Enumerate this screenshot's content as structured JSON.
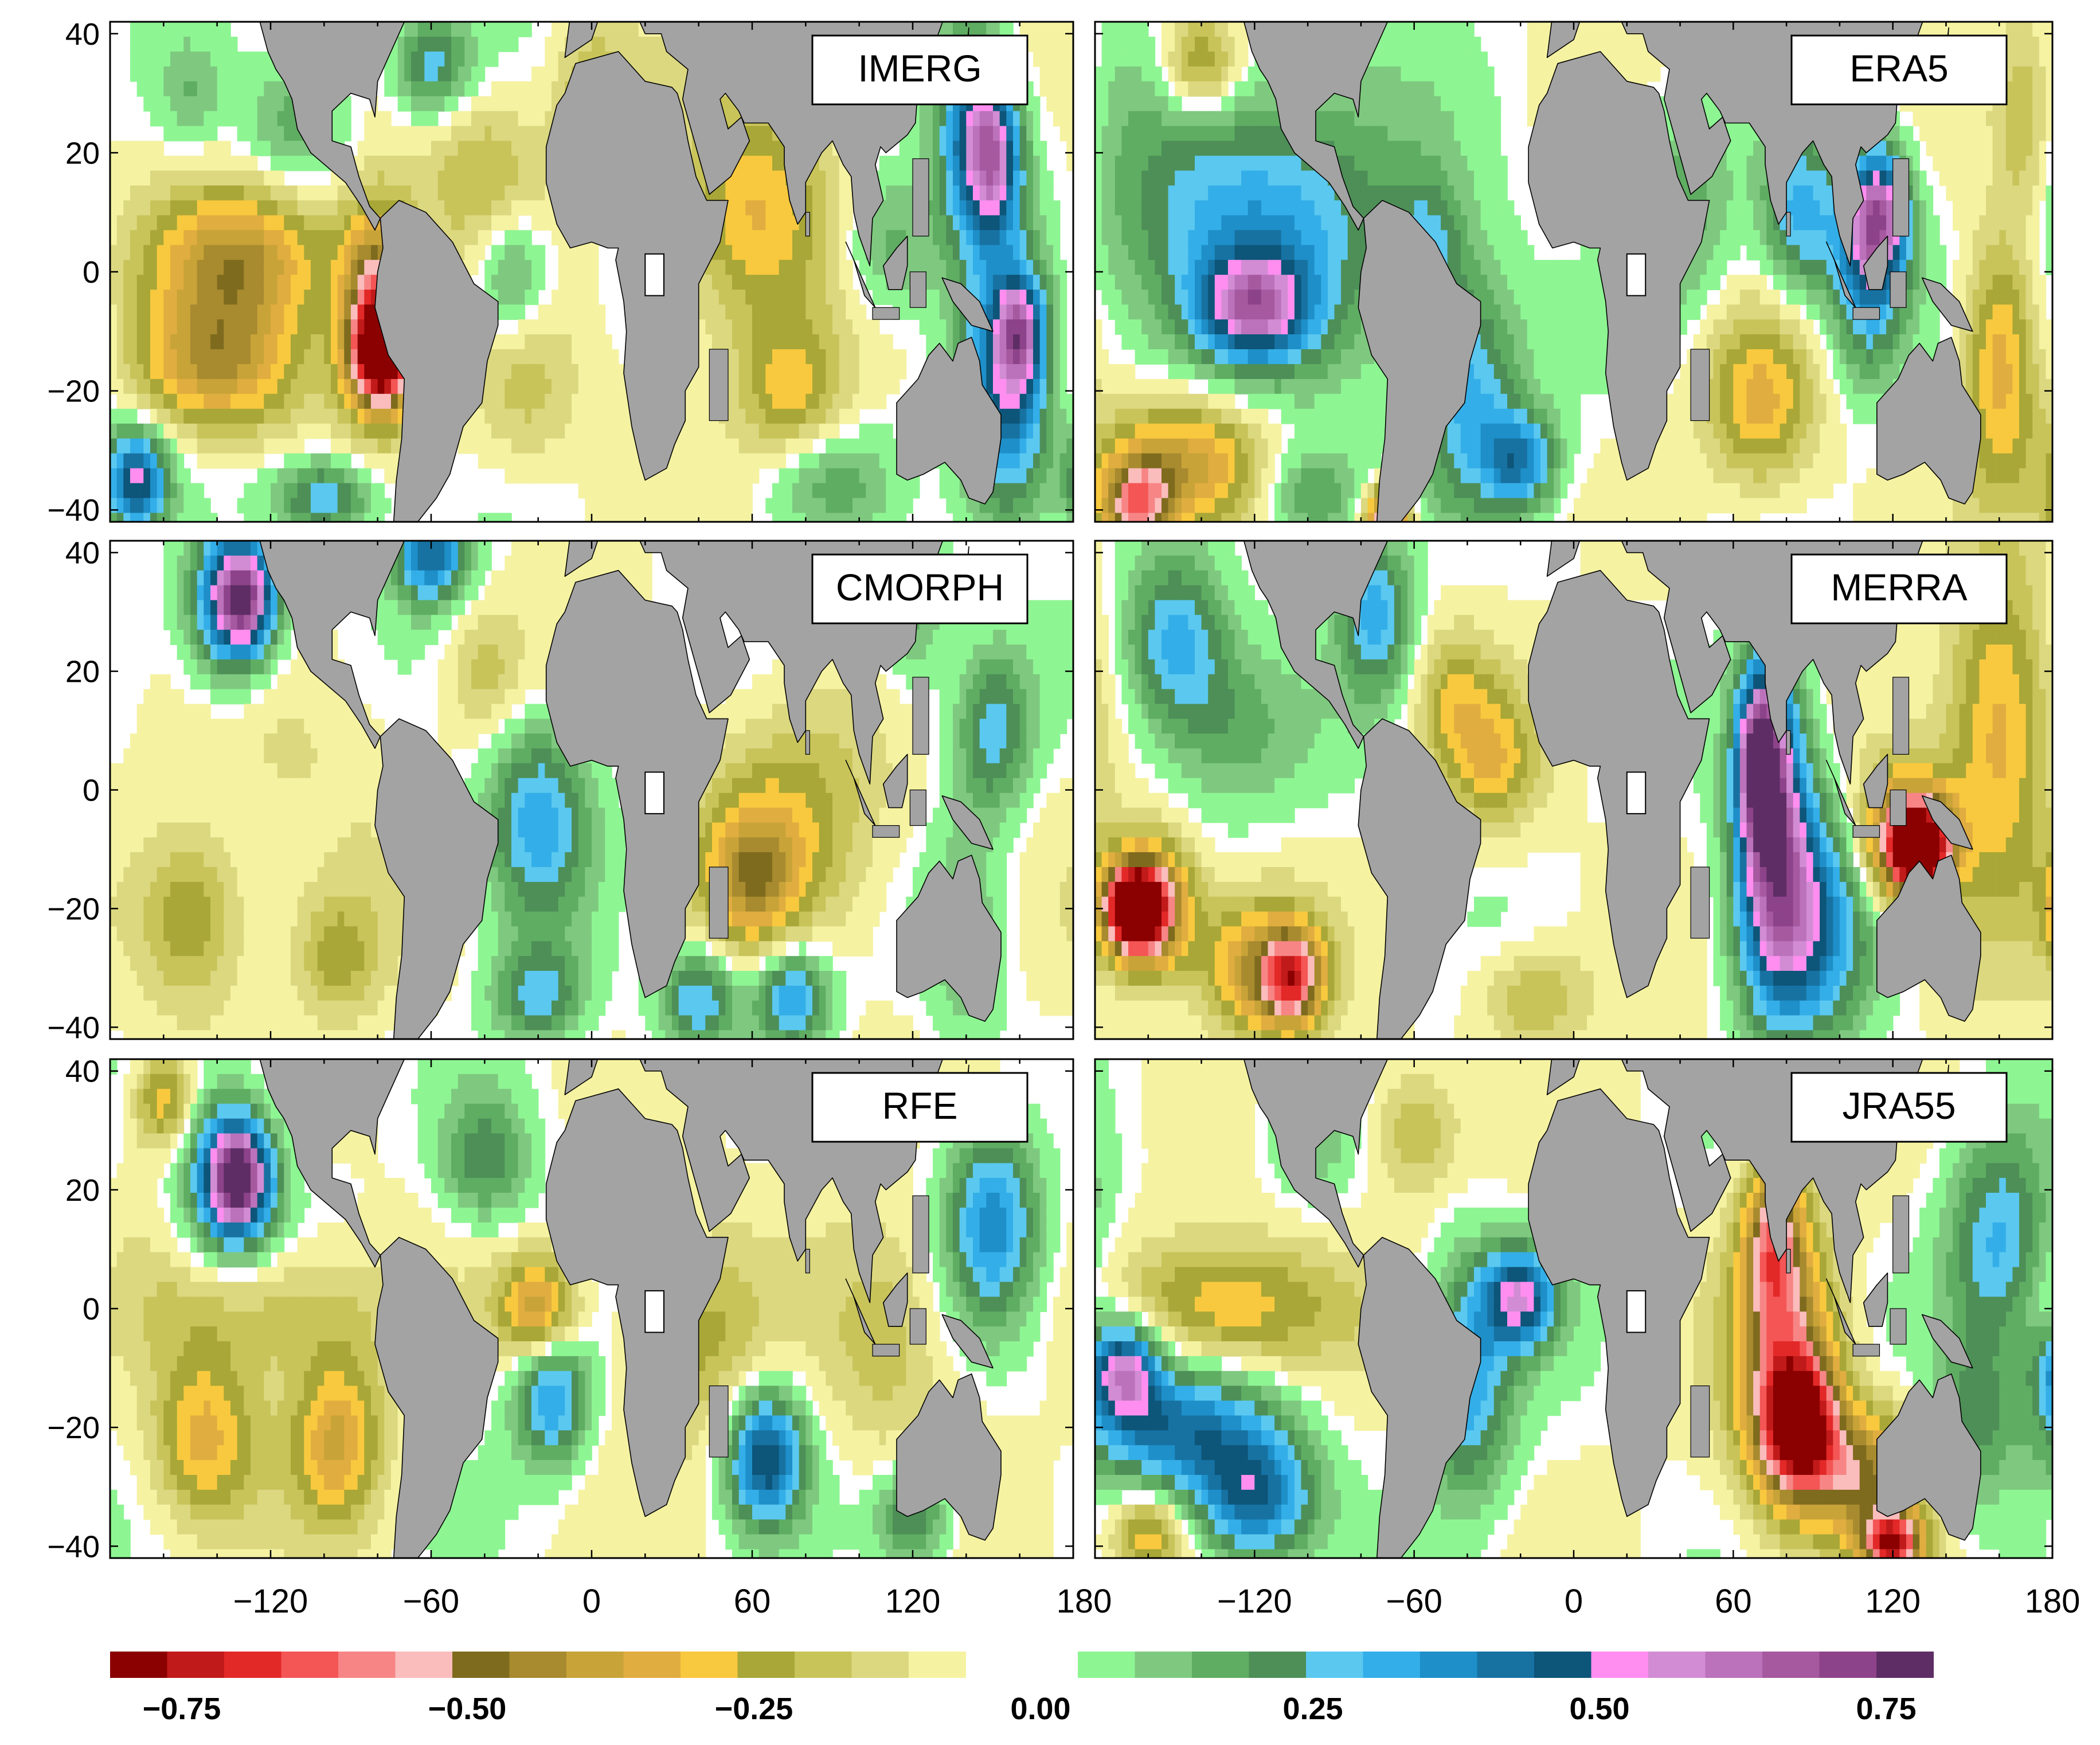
{
  "chart_data": {
    "type": "heatmap",
    "title": "",
    "x_ticks": [
      -120,
      -60,
      0,
      60,
      120,
      180
    ],
    "y_ticks": [
      40,
      20,
      0,
      -20,
      -40
    ],
    "xlim": [
      -180,
      180
    ],
    "ylim": [
      -42,
      42
    ],
    "land_color": "#a3a3a3",
    "panels": [
      {
        "name": "IMERG",
        "column": "left",
        "row": 1,
        "blobs": [
          [
            -130,
            2,
            24,
            9,
            -0.42
          ],
          [
            -80,
            -6,
            10,
            12,
            -0.6
          ],
          [
            -78,
            -14,
            8,
            6,
            -0.72
          ],
          [
            -140,
            -16,
            22,
            8,
            -0.38
          ],
          [
            -150,
            30,
            8,
            6,
            0.12
          ],
          [
            -110,
            25,
            14,
            8,
            0.2
          ],
          [
            -40,
            16,
            16,
            10,
            -0.18
          ],
          [
            -25,
            -20,
            14,
            10,
            -0.15
          ],
          [
            -30,
            0,
            10,
            8,
            0.25
          ],
          [
            60,
            10,
            20,
            14,
            -0.3
          ],
          [
            75,
            -20,
            14,
            8,
            -0.25
          ],
          [
            90,
            -35,
            16,
            6,
            0.15
          ],
          [
            140,
            25,
            10,
            14,
            0.35
          ],
          [
            150,
            20,
            8,
            10,
            0.55
          ],
          [
            155,
            -20,
            12,
            16,
            0.55
          ],
          [
            160,
            -10,
            6,
            6,
            0.4
          ],
          [
            -100,
            -38,
            14,
            5,
            0.35
          ],
          [
            -170,
            -35,
            8,
            6,
            0.55
          ],
          [
            110,
            5,
            12,
            8,
            0.2
          ],
          [
            -60,
            35,
            10,
            6,
            0.3
          ],
          [
            0,
            30,
            10,
            8,
            -0.2
          ]
        ]
      },
      {
        "name": "ERA5",
        "column": "right",
        "row": 1,
        "blobs": [
          [
            -120,
            8,
            40,
            18,
            0.38
          ],
          [
            -120,
            -6,
            14,
            6,
            0.48
          ],
          [
            -145,
            -32,
            22,
            8,
            -0.4
          ],
          [
            -165,
            -40,
            10,
            6,
            -0.55
          ],
          [
            -40,
            -20,
            14,
            14,
            0.35
          ],
          [
            -20,
            -32,
            10,
            6,
            0.4
          ],
          [
            40,
            10,
            14,
            12,
            0.2
          ],
          [
            70,
            -22,
            14,
            10,
            -0.3
          ],
          [
            85,
            10,
            10,
            10,
            0.35
          ],
          [
            110,
            0,
            10,
            12,
            0.4
          ],
          [
            115,
            10,
            8,
            8,
            0.55
          ],
          [
            160,
            -15,
            10,
            16,
            -0.35
          ],
          [
            -55,
            5,
            10,
            8,
            0.2
          ],
          [
            -140,
            35,
            10,
            6,
            -0.3
          ],
          [
            170,
            25,
            8,
            12,
            -0.2
          ],
          [
            -70,
            -42,
            6,
            4,
            -0.72
          ],
          [
            -100,
            -38,
            14,
            6,
            0.25
          ]
        ]
      },
      {
        "name": "CMORPH",
        "column": "left",
        "row": 2,
        "blobs": [
          [
            -135,
            32,
            12,
            10,
            0.45
          ],
          [
            -130,
            32,
            8,
            6,
            0.56
          ],
          [
            -110,
            5,
            30,
            14,
            -0.06
          ],
          [
            -150,
            -22,
            14,
            10,
            -0.25
          ],
          [
            -95,
            -28,
            12,
            8,
            -0.2
          ],
          [
            -20,
            -5,
            14,
            12,
            0.35
          ],
          [
            -40,
            20,
            10,
            8,
            -0.15
          ],
          [
            75,
            -5,
            24,
            14,
            -0.22
          ],
          [
            60,
            -15,
            12,
            8,
            -0.32
          ],
          [
            40,
            -35,
            10,
            6,
            0.35
          ],
          [
            75,
            -35,
            10,
            6,
            0.4
          ],
          [
            -60,
            40,
            10,
            6,
            0.5
          ],
          [
            -20,
            -35,
            12,
            6,
            0.3
          ],
          [
            150,
            10,
            10,
            10,
            0.3
          ],
          [
            140,
            -25,
            10,
            14,
            0.15
          ],
          [
            120,
            30,
            10,
            10,
            0.2
          ]
        ]
      },
      {
        "name": "MERRA",
        "column": "right",
        "row": 2,
        "blobs": [
          [
            -160,
            -20,
            12,
            8,
            -0.6
          ],
          [
            -165,
            -20,
            8,
            5,
            -0.8
          ],
          [
            -120,
            -30,
            14,
            8,
            -0.4
          ],
          [
            -105,
            -32,
            8,
            6,
            -0.55
          ],
          [
            -150,
            25,
            14,
            10,
            0.35
          ],
          [
            -130,
            10,
            20,
            10,
            0.18
          ],
          [
            -75,
            30,
            10,
            10,
            0.35
          ],
          [
            -45,
            15,
            10,
            8,
            -0.2
          ],
          [
            75,
            -5,
            10,
            20,
            0.6
          ],
          [
            70,
            5,
            6,
            10,
            0.65
          ],
          [
            88,
            -22,
            16,
            14,
            0.45
          ],
          [
            125,
            -8,
            12,
            8,
            -0.6
          ],
          [
            130,
            -10,
            8,
            5,
            -0.72
          ],
          [
            160,
            10,
            14,
            20,
            -0.35
          ],
          [
            -15,
            -35,
            14,
            6,
            -0.2
          ],
          [
            -30,
            5,
            12,
            8,
            -0.25
          ]
        ]
      },
      {
        "name": "RFE",
        "column": "left",
        "row": 3,
        "blobs": [
          [
            -135,
            22,
            12,
            10,
            0.45
          ],
          [
            -132,
            22,
            8,
            6,
            0.58
          ],
          [
            -120,
            0,
            34,
            8,
            -0.18
          ],
          [
            -145,
            -22,
            14,
            10,
            -0.32
          ],
          [
            -95,
            -22,
            12,
            10,
            -0.35
          ],
          [
            -20,
            0,
            10,
            6,
            -0.42
          ],
          [
            -15,
            -15,
            10,
            8,
            0.4
          ],
          [
            65,
            -25,
            10,
            8,
            0.55
          ],
          [
            40,
            -5,
            18,
            12,
            -0.2
          ],
          [
            110,
            -5,
            16,
            14,
            -0.15
          ],
          [
            150,
            15,
            12,
            12,
            0.4
          ],
          [
            -160,
            35,
            8,
            6,
            -0.3
          ],
          [
            120,
            -35,
            10,
            6,
            0.3
          ],
          [
            -40,
            25,
            12,
            8,
            0.25
          ]
        ]
      },
      {
        "name": "JRA55",
        "column": "right",
        "row": 3,
        "blobs": [
          [
            -130,
            0,
            30,
            8,
            -0.32
          ],
          [
            -150,
            -20,
            24,
            8,
            0.45
          ],
          [
            -120,
            -32,
            16,
            8,
            0.5
          ],
          [
            -170,
            -10,
            10,
            6,
            0.6
          ],
          [
            -160,
            -38,
            10,
            5,
            -0.3
          ],
          [
            -40,
            -12,
            12,
            14,
            0.38
          ],
          [
            -20,
            2,
            10,
            6,
            0.55
          ],
          [
            80,
            -10,
            14,
            16,
            -0.5
          ],
          [
            85,
            -20,
            10,
            8,
            -0.72
          ],
          [
            75,
            12,
            8,
            10,
            -0.5
          ],
          [
            110,
            -28,
            14,
            8,
            -0.45
          ],
          [
            120,
            -40,
            8,
            4,
            -0.72
          ],
          [
            160,
            10,
            14,
            14,
            0.35
          ],
          [
            150,
            -20,
            10,
            10,
            0.2
          ],
          [
            -60,
            30,
            12,
            8,
            -0.2
          ],
          [
            -100,
            30,
            12,
            8,
            0.15
          ]
        ]
      }
    ],
    "colorbar": {
      "ticks": [
        "−0.75",
        "−0.50",
        "−0.25",
        "0.00",
        "0.25",
        "0.50",
        "0.75"
      ],
      "negative_colors": [
        "#8b0000",
        "#c11a1a",
        "#e32828",
        "#f45555",
        "#f78585",
        "#fbbcbc",
        "#7e6b1e",
        "#a88a2f",
        "#c8a338",
        "#e0ad40",
        "#f8c93e",
        "#a8a737",
        "#c8c45a",
        "#dcd880",
        "#f5f2a2"
      ],
      "positive_colors": [
        "#8ef593",
        "#7ec97f",
        "#5fad62",
        "#4d8f57",
        "#5bc8f0",
        "#33aee8",
        "#1e8fc8",
        "#1772a2",
        "#0d5579",
        "#ff8ef0",
        "#d28cd4",
        "#bb72bb",
        "#a6599f",
        "#8d4389",
        "#5e2d65"
      ]
    }
  }
}
